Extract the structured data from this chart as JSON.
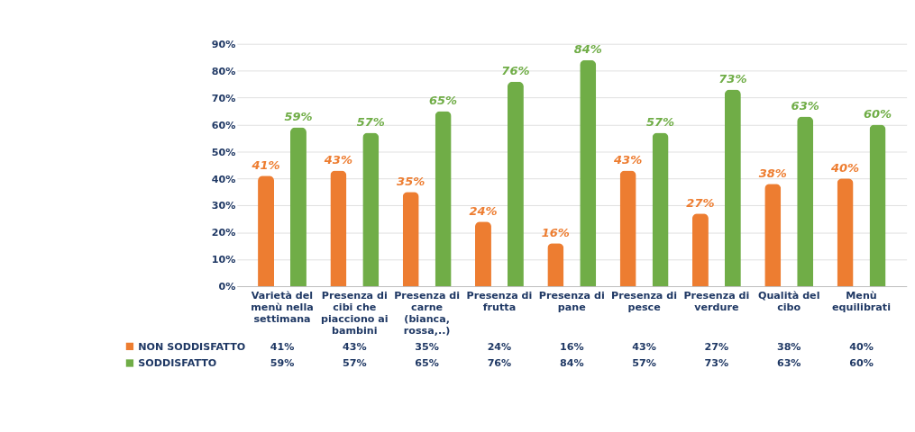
{
  "chart_data": {
    "type": "bar",
    "categories": [
      "Varietà del menù nella settimana",
      "Presenza di cibi che piacciono ai bambini",
      "Presenza di carne (bianca, rossa,..)",
      "Presenza di frutta",
      "Presenza di pane",
      "Presenza di pesce",
      "Presenza di verdure",
      "Qualità del cibo",
      "Menù equilibrati"
    ],
    "series": [
      {
        "name": "NON SODDISFATTO",
        "color": "#ed7d31",
        "values": [
          41,
          43,
          35,
          24,
          16,
          43,
          27,
          38,
          40
        ],
        "value_labels": [
          "41%",
          "43%",
          "35%",
          "24%",
          "16%",
          "43%",
          "27%",
          "38%",
          "40%"
        ]
      },
      {
        "name": "SODDISFATTO",
        "color": "#70ad47",
        "values": [
          59,
          57,
          65,
          76,
          84,
          57,
          73,
          63,
          60
        ],
        "value_labels": [
          "59%",
          "57%",
          "65%",
          "76%",
          "84%",
          "57%",
          "73%",
          "63%",
          "60%"
        ]
      }
    ],
    "ylim": [
      0,
      90
    ],
    "yticks": [
      {
        "value": 0,
        "label": "0%"
      },
      {
        "value": 10,
        "label": "10%"
      },
      {
        "value": 20,
        "label": "20%"
      },
      {
        "value": 30,
        "label": "30%"
      },
      {
        "value": 40,
        "label": "40%"
      },
      {
        "value": 50,
        "label": "50%"
      },
      {
        "value": 60,
        "label": "60%"
      },
      {
        "value": 70,
        "label": "70%"
      },
      {
        "value": 80,
        "label": "80%"
      },
      {
        "value": 90,
        "label": "90%"
      }
    ],
    "grid": "y",
    "legend": "bottom"
  }
}
